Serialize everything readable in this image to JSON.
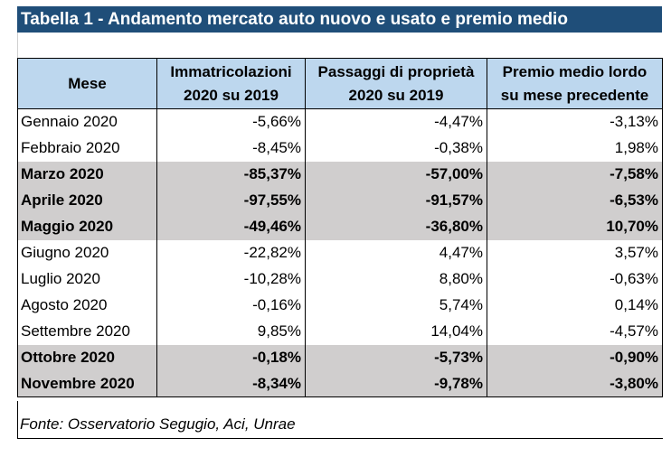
{
  "title": "Tabella 1 - Andamento mercato auto nuovo e usato e premio medio",
  "columns": [
    {
      "line1": "Mese",
      "line2": ""
    },
    {
      "line1": "Immatricolazioni",
      "line2": "2020 su 2019"
    },
    {
      "line1": "Passaggi di proprietà",
      "line2": "2020 su 2019"
    },
    {
      "line1": "Premio medio lordo",
      "line2": "su mese precedente"
    }
  ],
  "rows": [
    {
      "month": "Gennaio 2020",
      "immatricolazioni": "-5,66%",
      "passaggi": "-4,47%",
      "premio": "-3,13%",
      "highlight": false
    },
    {
      "month": "Febbraio 2020",
      "immatricolazioni": "-8,45%",
      "passaggi": "-0,38%",
      "premio": "1,98%",
      "highlight": false
    },
    {
      "month": "Marzo 2020",
      "immatricolazioni": "-85,37%",
      "passaggi": "-57,00%",
      "premio": "-7,58%",
      "highlight": true
    },
    {
      "month": "Aprile 2020",
      "immatricolazioni": "-97,55%",
      "passaggi": "-91,57%",
      "premio": "-6,53%",
      "highlight": true
    },
    {
      "month": "Maggio 2020",
      "immatricolazioni": "-49,46%",
      "passaggi": "-36,80%",
      "premio": "10,70%",
      "highlight": true
    },
    {
      "month": "Giugno 2020",
      "immatricolazioni": "-22,82%",
      "passaggi": "4,47%",
      "premio": "3,57%",
      "highlight": false
    },
    {
      "month": "Luglio 2020",
      "immatricolazioni": "-10,28%",
      "passaggi": "8,80%",
      "premio": "-0,63%",
      "highlight": false
    },
    {
      "month": "Agosto 2020",
      "immatricolazioni": "-0,16%",
      "passaggi": "5,74%",
      "premio": "0,14%",
      "highlight": false
    },
    {
      "month": "Settembre 2020",
      "immatricolazioni": "9,85%",
      "passaggi": "14,04%",
      "premio": "-4,57%",
      "highlight": false
    },
    {
      "month": "Ottobre 2020",
      "immatricolazioni": "-0,18%",
      "passaggi": "-5,73%",
      "premio": "-0,90%",
      "highlight": true
    },
    {
      "month": "Novembre 2020",
      "immatricolazioni": "-8,34%",
      "passaggi": "-9,78%",
      "premio": "-3,80%",
      "highlight": true
    }
  ],
  "source": "Fonte: Osservatorio Segugio, Aci, Unrae",
  "colors": {
    "title_bg": "#1f4e79",
    "header_bg": "#bdd7ee",
    "highlight_bg": "#d0cece"
  }
}
